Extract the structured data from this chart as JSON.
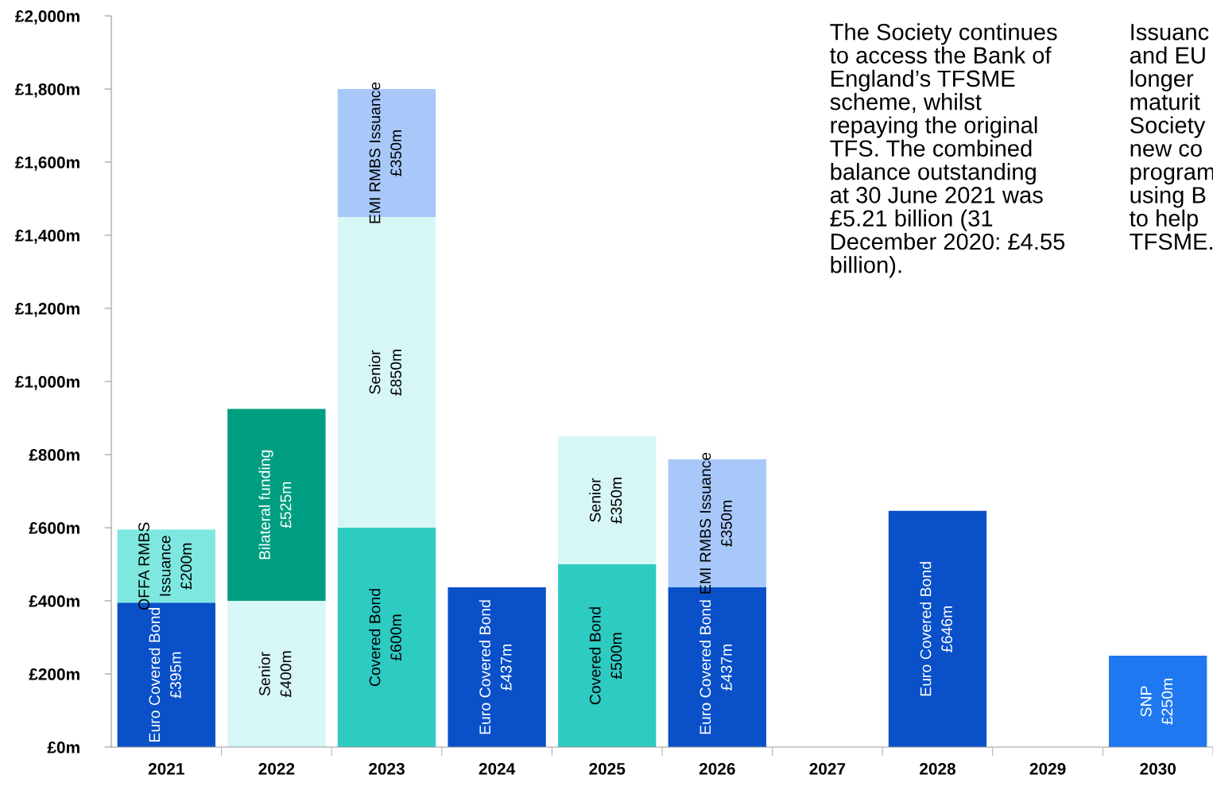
{
  "chart_data": {
    "type": "bar",
    "stacked": true,
    "categories": [
      "2021",
      "2022",
      "2023",
      "2024",
      "2025",
      "2026",
      "2027",
      "2028",
      "2029",
      "2030"
    ],
    "series": [
      {
        "colors": [
          "#0a50c8",
          "#d6f7f5",
          "#2ecbc3",
          "#0a50c8",
          "#2ecbc3",
          "#0a50c8",
          null,
          "#0a50c8",
          null,
          "#1f78f0"
        ],
        "values": [
          395,
          400,
          600,
          437,
          500,
          437,
          null,
          646,
          null,
          250
        ],
        "value_labels": [
          "Euro Covered Bond\n£395m",
          "Senior\n£400m",
          "Covered Bond\n£600m",
          "Euro Covered Bond\n£437m",
          "Covered Bond\n£500m",
          "Euro Covered Bond\n£437m",
          null,
          "Euro Covered Bond\n£646m",
          null,
          "SNP\n£250m"
        ]
      },
      {
        "colors": [
          "#7ee8e0",
          "#009e80",
          "#d6f7f5",
          null,
          "#d6f7f5",
          "#a8c8fa",
          null,
          null,
          null,
          null
        ],
        "values": [
          200,
          525,
          850,
          null,
          350,
          350,
          null,
          null,
          null,
          null
        ],
        "value_labels": [
          "OFFA RMBS\nIssuance\n£200m",
          "Bilateral funding\n£525m",
          "Senior\n£850m",
          null,
          "Senior\n£350m",
          "EMI RMBS Issuance\n£350m",
          null,
          null,
          null,
          null
        ]
      },
      {
        "colors": [
          null,
          null,
          "#a8c8fa",
          null,
          null,
          null,
          null,
          null,
          null,
          null
        ],
        "values": [
          null,
          null,
          350,
          null,
          null,
          null,
          null,
          null,
          null,
          null
        ],
        "value_labels": [
          null,
          null,
          "EMI RMBS Issuance\n£350m",
          null,
          null,
          null,
          null,
          null,
          null,
          null
        ]
      }
    ],
    "ylim": [
      0,
      2000
    ],
    "yticks": [
      {
        "value": 0,
        "label": "£0m"
      },
      {
        "value": 200,
        "label": "£200m"
      },
      {
        "value": 400,
        "label": "£400m"
      },
      {
        "value": 600,
        "label": "£600m"
      },
      {
        "value": 800,
        "label": "£800m"
      },
      {
        "value": 1000,
        "label": "£1,000m"
      },
      {
        "value": 1200,
        "label": "£1,200m"
      },
      {
        "value": 1400,
        "label": "£1,400m"
      },
      {
        "value": 1600,
        "label": "£1,600m"
      },
      {
        "value": 1800,
        "label": "£1,800m"
      },
      {
        "value": 2000,
        "label": "£2,000m"
      }
    ],
    "grid": false,
    "legend": false,
    "annotations": [
      "The Society continues\nto access the Bank of\nEngland’s TFSME\nscheme, whilst\nrepaying the original\nTFS. The combined\nbalance outstanding\nat 30 June 2021 was\n£5.21 billion (31\nDecember 2020: £4.55\nbillion).",
      "Issuanc\nand EU\nlonger\nmaturit\nSociety\nnew co\nprogram\nusing B\nto help\nTFSME."
    ]
  }
}
